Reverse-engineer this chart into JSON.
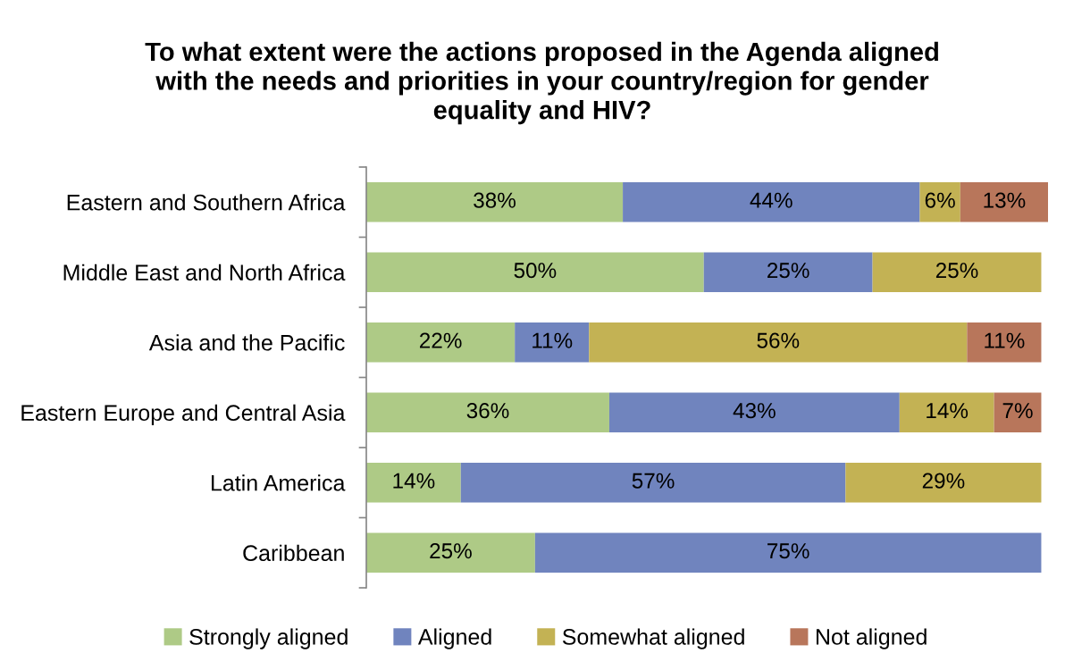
{
  "chart_data": {
    "type": "bar",
    "orientation": "horizontal",
    "stacked": true,
    "title": "To what extent were the actions proposed in the Agenda aligned\nwith the needs and priorities in your country/region for gender\nequality and HIV?",
    "categories": [
      "Eastern and Southern Africa",
      "Middle East and North Africa",
      "Asia and the Pacific",
      "Eastern Europe and Central Asia",
      "Latin America",
      "Caribbean"
    ],
    "series": [
      {
        "name": "Strongly aligned",
        "color": "#aeca86",
        "values": [
          38,
          50,
          22,
          36,
          14,
          25
        ],
        "value_labels": [
          "38%",
          "50%",
          "22%",
          "36%",
          "14%",
          "25%"
        ]
      },
      {
        "name": "Aligned",
        "color": "#7084be",
        "values": [
          44,
          25,
          11,
          43,
          57,
          75
        ],
        "value_labels": [
          "44%",
          "25%",
          "11%",
          "43%",
          "57%",
          "75%"
        ]
      },
      {
        "name": "Somewhat aligned",
        "color": "#c3b254",
        "values": [
          6,
          25,
          56,
          14,
          29,
          null
        ],
        "value_labels": [
          "6%",
          "25%",
          "56%",
          "14%",
          "29%",
          null
        ]
      },
      {
        "name": "Not aligned",
        "color": "#b8765b",
        "values": [
          13,
          null,
          11,
          7,
          null,
          null
        ],
        "value_labels": [
          "13%",
          null,
          "11%",
          "7%",
          null,
          null
        ]
      }
    ],
    "legend": "bottom",
    "tick_labels": "y",
    "grid": false
  }
}
